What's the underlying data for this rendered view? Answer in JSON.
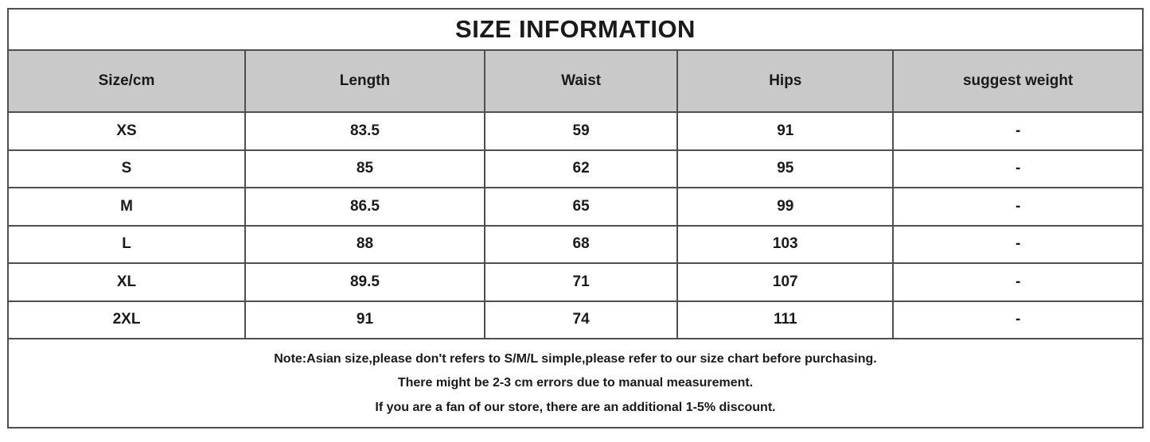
{
  "title": "SIZE INFORMATION",
  "colors": {
    "header_bg": "#c9c9c9",
    "grid_border": "#4f4f4f",
    "outer_border": "#595959",
    "text": "#1a1a1a",
    "background": "#ffffff"
  },
  "table": {
    "headers": [
      "Size/cm",
      "Length",
      "Waist",
      "Hips",
      "suggest weight"
    ],
    "rows": [
      {
        "size": "XS",
        "length": "83.5",
        "waist": "59",
        "hips": "91",
        "weight": "-"
      },
      {
        "size": "S",
        "length": "85",
        "waist": "62",
        "hips": "95",
        "weight": "-"
      },
      {
        "size": "M",
        "length": "86.5",
        "waist": "65",
        "hips": "99",
        "weight": "-"
      },
      {
        "size": "L",
        "length": "88",
        "waist": "68",
        "hips": "103",
        "weight": "-"
      },
      {
        "size": "XL",
        "length": "89.5",
        "waist": "71",
        "hips": "107",
        "weight": "-"
      },
      {
        "size": "2XL",
        "length": "91",
        "waist": "74",
        "hips": "111",
        "weight": "-"
      }
    ]
  },
  "notes": [
    "Note:Asian size,please don't refers to S/M/L simple,please refer to our size chart before purchasing.",
    "There might be 2-3 cm errors due to manual measurement.",
    "If you are a fan of our store, there are an additional 1-5% discount."
  ]
}
